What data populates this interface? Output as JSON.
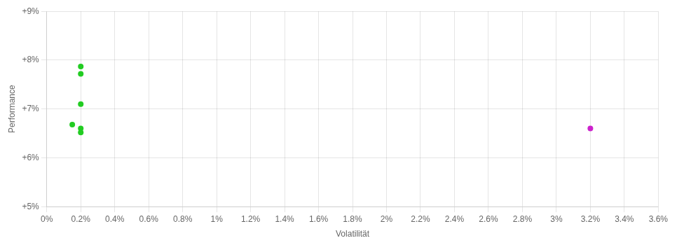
{
  "chart_data": {
    "type": "scatter",
    "xlabel": "Volatilität",
    "ylabel": "Performance",
    "xlim": [
      0.0,
      0.036
    ],
    "ylim": [
      0.05,
      0.09
    ],
    "xticks": [
      {
        "value": 0.0,
        "label": "0%"
      },
      {
        "value": 0.002,
        "label": "0.2%"
      },
      {
        "value": 0.004,
        "label": "0.4%"
      },
      {
        "value": 0.006,
        "label": "0.6%"
      },
      {
        "value": 0.008,
        "label": "0.8%"
      },
      {
        "value": 0.01,
        "label": "1%"
      },
      {
        "value": 0.012,
        "label": "1.2%"
      },
      {
        "value": 0.014,
        "label": "1.4%"
      },
      {
        "value": 0.016,
        "label": "1.6%"
      },
      {
        "value": 0.018,
        "label": "1.8%"
      },
      {
        "value": 0.02,
        "label": "2%"
      },
      {
        "value": 0.022,
        "label": "2.2%"
      },
      {
        "value": 0.024,
        "label": "2.4%"
      },
      {
        "value": 0.026,
        "label": "2.6%"
      },
      {
        "value": 0.028,
        "label": "2.8%"
      },
      {
        "value": 0.03,
        "label": "3%"
      },
      {
        "value": 0.032,
        "label": "3.2%"
      },
      {
        "value": 0.034,
        "label": "3.4%"
      },
      {
        "value": 0.036,
        "label": "3.6%"
      }
    ],
    "yticks": [
      {
        "value": 0.05,
        "label": "+5%"
      },
      {
        "value": 0.06,
        "label": "+6%"
      },
      {
        "value": 0.07,
        "label": "+7%"
      },
      {
        "value": 0.08,
        "label": "+8%"
      },
      {
        "value": 0.09,
        "label": "+9%"
      }
    ],
    "grid": true,
    "series": [
      {
        "color": "#22cc22",
        "x": [
          0.002,
          0.002,
          0.002,
          0.0015,
          0.002,
          0.002
        ],
        "y": [
          0.0787,
          0.0772,
          0.071,
          0.0668,
          0.066,
          0.0652
        ]
      },
      {
        "color": "#cc22cc",
        "x": [
          0.032
        ],
        "y": [
          0.066
        ]
      }
    ]
  }
}
